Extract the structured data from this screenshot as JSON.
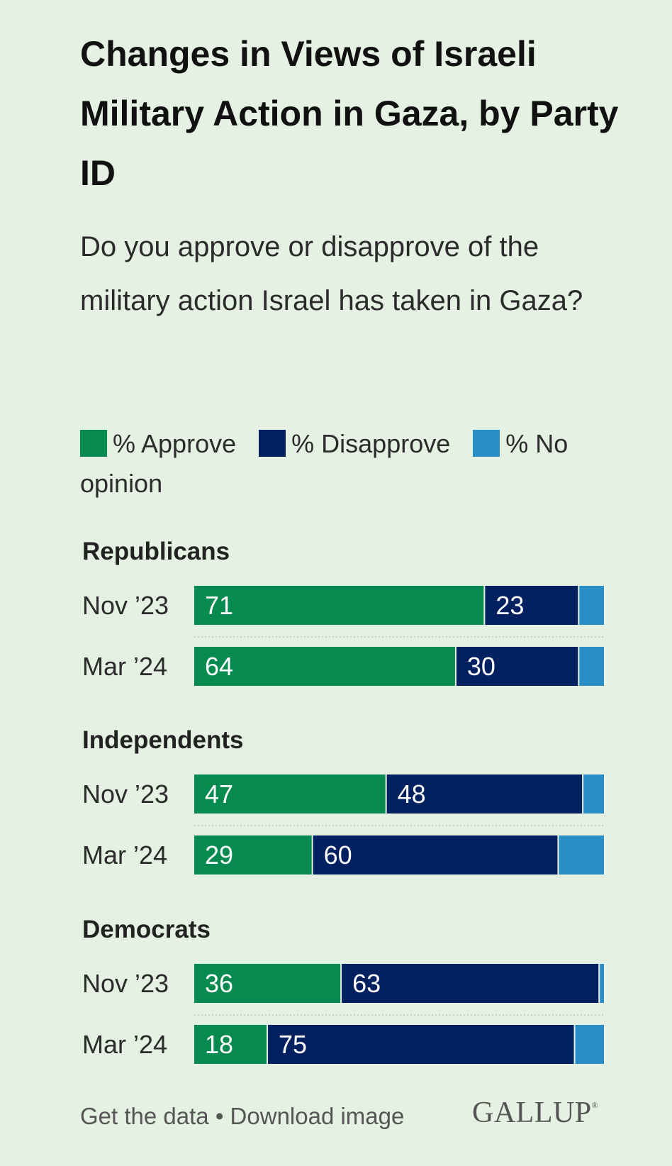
{
  "title": "Changes in Views of Israeli Military Action in Gaza, by Party ID",
  "subtitle": "Do you approve or disapprove of the military action Israel has taken in Gaza?",
  "legend": [
    {
      "label": "% Approve",
      "color": "#068a4f"
    },
    {
      "label": "% Disapprove",
      "color": "#002060"
    },
    {
      "label": "% No opinion",
      "color": "#2a8ec6"
    }
  ],
  "chart_data": {
    "type": "bar",
    "orientation": "horizontal",
    "stacked": true,
    "title": "Changes in Views of Israeli Military Action in Gaza, by Party ID",
    "series_names": [
      "% Approve",
      "% Disapprove",
      "% No opinion"
    ],
    "xlim": [
      0,
      100
    ],
    "groups": [
      {
        "name": "Republicans",
        "rows": [
          {
            "label": "Nov ’23",
            "values": [
              71,
              23,
              6
            ]
          },
          {
            "label": "Mar ’24",
            "values": [
              64,
              30,
              6
            ]
          }
        ]
      },
      {
        "name": "Independents",
        "rows": [
          {
            "label": "Nov ’23",
            "values": [
              47,
              48,
              5
            ]
          },
          {
            "label": "Mar ’24",
            "values": [
              29,
              60,
              11
            ]
          }
        ]
      },
      {
        "name": "Democrats",
        "rows": [
          {
            "label": "Nov ’23",
            "values": [
              36,
              63,
              1
            ]
          },
          {
            "label": "Mar ’24",
            "values": [
              18,
              75,
              7
            ]
          }
        ]
      }
    ]
  },
  "footer": {
    "get_data": "Get the data",
    "separator": "•",
    "download": "Download image",
    "logo": "GALLUP",
    "logo_mark": "®"
  }
}
